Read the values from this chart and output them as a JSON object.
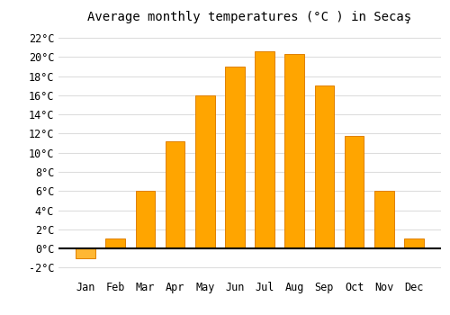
{
  "title": "Average monthly temperatures (°C ) in Secaş",
  "months": [
    "Jan",
    "Feb",
    "Mar",
    "Apr",
    "May",
    "Jun",
    "Jul",
    "Aug",
    "Sep",
    "Oct",
    "Nov",
    "Dec"
  ],
  "values": [
    -1.0,
    1.0,
    6.0,
    11.2,
    16.0,
    19.0,
    20.6,
    20.3,
    17.0,
    11.8,
    6.0,
    1.0
  ],
  "bar_color_positive": "#FFA500",
  "bar_color_negative": "#FFB733",
  "bar_edge_color": "#E08000",
  "ylim": [
    -3,
    23
  ],
  "yticks": [
    -2,
    0,
    2,
    4,
    6,
    8,
    10,
    12,
    14,
    16,
    18,
    20,
    22
  ],
  "ytick_labels": [
    "-2°C",
    "0°C",
    "2°C",
    "4°C",
    "6°C",
    "8°C",
    "10°C",
    "12°C",
    "14°C",
    "16°C",
    "18°C",
    "20°C",
    "22°C"
  ],
  "background_color": "#FFFFFF",
  "grid_color": "#DDDDDD",
  "title_fontsize": 10,
  "tick_fontsize": 8.5,
  "bar_width": 0.65
}
